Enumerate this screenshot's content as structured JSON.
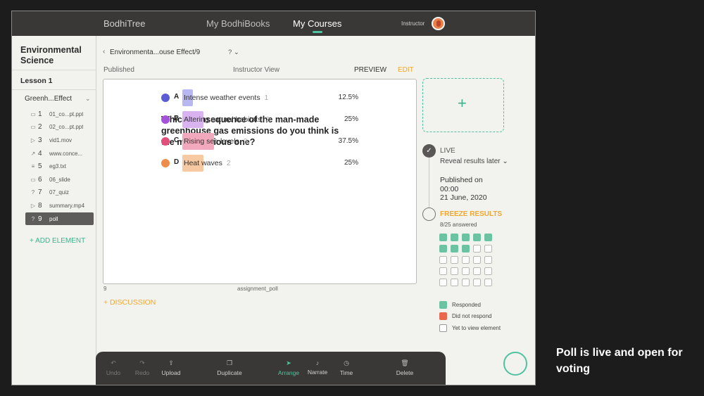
{
  "topbar": {
    "brand": "BodhiTree",
    "nav": [
      "My BodhiBooks",
      "My Courses"
    ],
    "active": "My Courses",
    "role": "Instructor"
  },
  "sidebar": {
    "course_title": "Environmental Science",
    "lesson": "Lesson 1",
    "module": "Greenh...Effect",
    "elements": [
      {
        "icon": "slides-icon",
        "glyph": "▭",
        "num": "1",
        "name": "01_co...pt.ppt"
      },
      {
        "icon": "slides-icon",
        "glyph": "▭",
        "num": "2",
        "name": "02_co...pt.ppt"
      },
      {
        "icon": "video-icon",
        "glyph": "▷",
        "num": "3",
        "name": "vid1.mov"
      },
      {
        "icon": "link-icon",
        "glyph": "↗",
        "num": "4",
        "name": "www.conce..."
      },
      {
        "icon": "text-icon",
        "glyph": "≡",
        "num": "5",
        "name": "eg3.txt"
      },
      {
        "icon": "slides-icon",
        "glyph": "▭",
        "num": "6",
        "name": "06_slide"
      },
      {
        "icon": "quiz-icon",
        "glyph": "?",
        "num": "7",
        "name": "07_quiz"
      },
      {
        "icon": "video-icon",
        "glyph": "▷",
        "num": "8",
        "name": "summary.mp4"
      },
      {
        "icon": "poll-icon",
        "glyph": "?",
        "num": "9",
        "name": "poll",
        "selected": true
      }
    ],
    "add_element": "+ ADD ELEMENT"
  },
  "header": {
    "breadcrumb": "Environmenta...ouse Effect/9",
    "help": "? ⌄",
    "status": "Published",
    "view": "Instructor View",
    "preview": "PREVIEW",
    "edit": "EDIT"
  },
  "poll": {
    "question": "Which consequence of the man-made greenhouse gas emissions do you think is the most serious one?",
    "options": [
      {
        "letter": "A",
        "text": "Intense weather events",
        "count": "1",
        "percent": "12.5%",
        "fraction": 0.125,
        "color": "#5b5bd6",
        "bar": "#b9b7f0"
      },
      {
        "letter": "B",
        "text": "Altering natural habitats",
        "count": "2",
        "percent": "25%",
        "fraction": 0.25,
        "color": "#a352d9",
        "bar": "#d9b2f0"
      },
      {
        "letter": "C",
        "text": "Rising sea levels",
        "count": "3",
        "percent": "37.5%",
        "fraction": 0.375,
        "color": "#e0507a",
        "bar": "#f2a9bd"
      },
      {
        "letter": "D",
        "text": "Heat waves",
        "count": "2",
        "percent": "25%",
        "fraction": 0.25,
        "color": "#ee8d4a",
        "bar": "#f6c9a3"
      }
    ],
    "element_number": "9",
    "element_type": "assignment_poll",
    "discussion": "+ DISCUSSION"
  },
  "status_panel": {
    "add_slot": "+",
    "live": "LIVE",
    "reveal": "Reveal results later ⌄",
    "published_label": "Published on",
    "published_time": "00:00",
    "published_date": "21 June, 2020",
    "freeze": "FREEZE RESULTS",
    "answered": "8/25 answered",
    "answered_count": 8,
    "total_count": 25,
    "legend": [
      {
        "label": "Responded",
        "color": "#6cc3a2"
      },
      {
        "label": "Did not respond",
        "color": "#e8674d"
      },
      {
        "label": "Yet to view element",
        "color": "#ffffff"
      }
    ]
  },
  "toolbar": [
    {
      "name": "undo",
      "label": "Undo",
      "glyph": "↶",
      "disabled": true
    },
    {
      "name": "redo",
      "label": "Redo",
      "glyph": "↷",
      "disabled": true
    },
    {
      "name": "upload",
      "label": "Upload",
      "glyph": "⇧"
    },
    {
      "name": "duplicate",
      "label": "Duplicate",
      "glyph": "❐"
    },
    {
      "name": "arrange",
      "label": "Arrange",
      "glyph": "➤",
      "active": true
    },
    {
      "name": "narrate",
      "label": "Narrate",
      "glyph": "♪"
    },
    {
      "name": "time",
      "label": "Time",
      "glyph": "◷"
    },
    {
      "name": "delete",
      "label": "Delete",
      "glyph": "🗑"
    }
  ],
  "caption": "Poll is live and open for voting"
}
